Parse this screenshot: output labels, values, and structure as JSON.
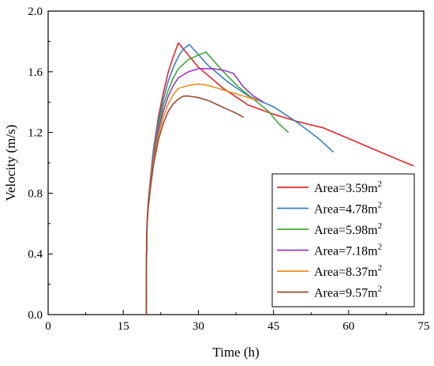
{
  "chart_data": {
    "type": "line",
    "title": "",
    "xlabel": "Time (h)",
    "ylabel": "Velocity (m/s)",
    "xlim": [
      0,
      75
    ],
    "ylim": [
      0.0,
      2.0
    ],
    "x_ticks": [
      0,
      15,
      30,
      45,
      60,
      75
    ],
    "y_ticks": [
      0.0,
      0.4,
      0.8,
      1.2,
      1.6,
      2.0
    ],
    "x_tick_labels": [
      "0",
      "15",
      "30",
      "45",
      "60",
      "75"
    ],
    "y_tick_labels": [
      "0.0",
      "0.4",
      "0.8",
      "1.2",
      "1.6",
      "2.0"
    ],
    "grid": false,
    "legend_position": "lower-right",
    "series": [
      {
        "name": "Area=3.59m2",
        "label_main": "Area=3.59m",
        "label_sup": "2",
        "color": "#e8262b",
        "points": [
          [
            19.6,
            0.0
          ],
          [
            19.65,
            0.4
          ],
          [
            19.75,
            0.6
          ],
          [
            20.0,
            0.75
          ],
          [
            20.5,
            0.92
          ],
          [
            21.0,
            1.08
          ],
          [
            22.0,
            1.3
          ],
          [
            23.0,
            1.46
          ],
          [
            24.0,
            1.6
          ],
          [
            25.0,
            1.7
          ],
          [
            26.0,
            1.79
          ],
          [
            30.0,
            1.63
          ],
          [
            35.0,
            1.49
          ],
          [
            40.0,
            1.38
          ],
          [
            45.0,
            1.32
          ],
          [
            50.0,
            1.27
          ],
          [
            55.0,
            1.23
          ],
          [
            60.0,
            1.16
          ],
          [
            65.0,
            1.09
          ],
          [
            70.0,
            1.02
          ],
          [
            73.0,
            0.98
          ]
        ]
      },
      {
        "name": "Area=4.78m2",
        "label_main": "Area=4.78m",
        "label_sup": "2",
        "color": "#3a80c4",
        "points": [
          [
            19.6,
            0.0
          ],
          [
            19.65,
            0.4
          ],
          [
            19.75,
            0.6
          ],
          [
            20.0,
            0.75
          ],
          [
            20.5,
            0.91
          ],
          [
            21.0,
            1.06
          ],
          [
            22.0,
            1.27
          ],
          [
            23.0,
            1.42
          ],
          [
            24.0,
            1.54
          ],
          [
            25.0,
            1.63
          ],
          [
            26.0,
            1.7
          ],
          [
            27.0,
            1.75
          ],
          [
            28.2,
            1.78
          ],
          [
            32.0,
            1.64
          ],
          [
            36.0,
            1.53
          ],
          [
            40.0,
            1.44
          ],
          [
            45.0,
            1.37
          ],
          [
            50.0,
            1.26
          ],
          [
            54.0,
            1.16
          ],
          [
            57.0,
            1.07
          ]
        ]
      },
      {
        "name": "Area=5.98m2",
        "label_main": "Area=5.98m",
        "label_sup": "2",
        "color": "#3fa83a",
        "points": [
          [
            19.6,
            0.0
          ],
          [
            19.65,
            0.4
          ],
          [
            19.75,
            0.6
          ],
          [
            20.0,
            0.74
          ],
          [
            20.5,
            0.9
          ],
          [
            21.0,
            1.04
          ],
          [
            22.0,
            1.24
          ],
          [
            23.0,
            1.38
          ],
          [
            24.0,
            1.48
          ],
          [
            25.0,
            1.56
          ],
          [
            26.0,
            1.62
          ],
          [
            28.0,
            1.68
          ],
          [
            30.0,
            1.71
          ],
          [
            31.5,
            1.73
          ],
          [
            35.0,
            1.6
          ],
          [
            38.0,
            1.5
          ],
          [
            41.0,
            1.42
          ],
          [
            44.0,
            1.34
          ],
          [
            46.0,
            1.26
          ],
          [
            48.0,
            1.2
          ]
        ]
      },
      {
        "name": "Area=7.18m2",
        "label_main": "Area=7.18m",
        "label_sup": "2",
        "color": "#9b3bbf",
        "points": [
          [
            19.6,
            0.0
          ],
          [
            19.65,
            0.4
          ],
          [
            19.75,
            0.6
          ],
          [
            20.0,
            0.73
          ],
          [
            20.5,
            0.89
          ],
          [
            21.0,
            1.02
          ],
          [
            22.0,
            1.21
          ],
          [
            23.0,
            1.34
          ],
          [
            24.0,
            1.44
          ],
          [
            25.0,
            1.51
          ],
          [
            26.0,
            1.56
          ],
          [
            28.0,
            1.6
          ],
          [
            30.0,
            1.62
          ],
          [
            33.0,
            1.62
          ],
          [
            35.0,
            1.61
          ],
          [
            37.0,
            1.59
          ],
          [
            39.0,
            1.5
          ],
          [
            41.0,
            1.44
          ],
          [
            43.0,
            1.4
          ]
        ]
      },
      {
        "name": "Area=8.37m2",
        "label_main": "Area=8.37m",
        "label_sup": "2",
        "color": "#f08c1e",
        "points": [
          [
            19.6,
            0.0
          ],
          [
            19.65,
            0.4
          ],
          [
            19.75,
            0.6
          ],
          [
            20.0,
            0.72
          ],
          [
            20.5,
            0.87
          ],
          [
            21.0,
            1.0
          ],
          [
            22.0,
            1.18
          ],
          [
            23.0,
            1.3
          ],
          [
            24.0,
            1.39
          ],
          [
            25.0,
            1.45
          ],
          [
            26.0,
            1.49
          ],
          [
            28.0,
            1.51
          ],
          [
            30.0,
            1.52
          ],
          [
            32.0,
            1.51
          ],
          [
            34.0,
            1.49
          ],
          [
            36.0,
            1.47
          ],
          [
            38.0,
            1.45
          ],
          [
            40.0,
            1.43
          ],
          [
            42.0,
            1.41
          ]
        ]
      },
      {
        "name": "Area=9.57m2",
        "label_main": "Area=9.57m",
        "label_sup": "2",
        "color": "#9a4a2e",
        "points": [
          [
            19.6,
            0.0
          ],
          [
            19.65,
            0.4
          ],
          [
            19.75,
            0.6
          ],
          [
            20.0,
            0.71
          ],
          [
            20.5,
            0.85
          ],
          [
            21.0,
            0.98
          ],
          [
            22.0,
            1.15
          ],
          [
            23.0,
            1.26
          ],
          [
            24.0,
            1.34
          ],
          [
            25.0,
            1.39
          ],
          [
            26.0,
            1.42
          ],
          [
            27.0,
            1.44
          ],
          [
            28.0,
            1.44
          ],
          [
            30.0,
            1.43
          ],
          [
            32.0,
            1.41
          ],
          [
            34.0,
            1.38
          ],
          [
            36.0,
            1.35
          ],
          [
            38.0,
            1.32
          ],
          [
            39.0,
            1.3
          ]
        ]
      }
    ]
  }
}
